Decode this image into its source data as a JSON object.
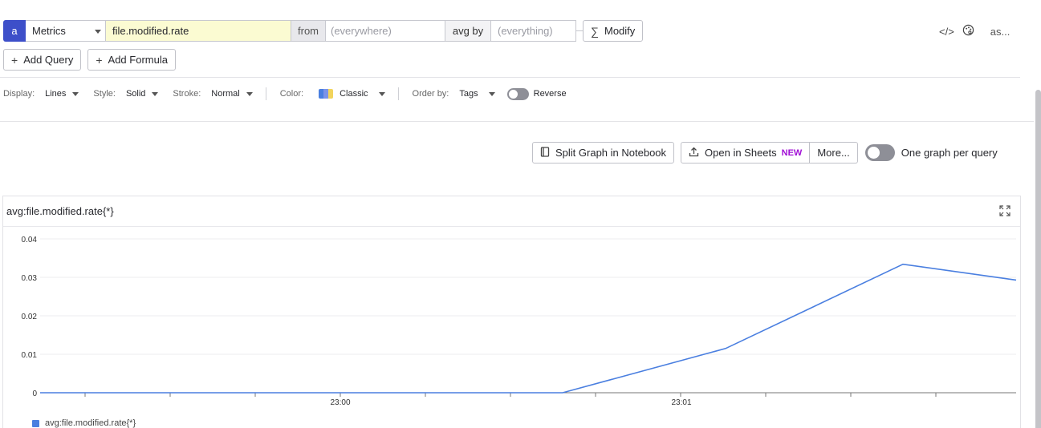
{
  "query": {
    "letter": "a",
    "source": "Metrics",
    "metric": "file.modified.rate",
    "from_label": "from",
    "from_placeholder": "(everywhere)",
    "avg_label": "avg by",
    "avg_placeholder": "(everything)",
    "modify_label": "Modify"
  },
  "top_right": {
    "truncated_label": "as..."
  },
  "actions": {
    "add_query": "Add Query",
    "add_formula": "Add Formula"
  },
  "display_options": {
    "display_label": "Display:",
    "display_value": "Lines",
    "style_label": "Style:",
    "style_value": "Solid",
    "stroke_label": "Stroke:",
    "stroke_value": "Normal",
    "color_label": "Color:",
    "color_value": "Classic",
    "order_label": "Order by:",
    "order_value": "Tags",
    "reverse_label": "Reverse",
    "palette": [
      "#4a7fe0",
      "#7b93e8",
      "#f2d45c"
    ]
  },
  "graph_actions": {
    "split_graph": "Split Graph in Notebook",
    "open_sheets": "Open in Sheets",
    "new_badge": "NEW",
    "more": "More...",
    "one_graph": "One graph per query"
  },
  "chart_data": {
    "type": "line",
    "title": "avg:file.modified.rate{*}",
    "x": [
      "22:59:44",
      "22:59:59",
      "23:00:14",
      "23:00:29",
      "23:00:44",
      "23:00:59",
      "23:01:14",
      "23:01:29",
      "23:01:39"
    ],
    "series": [
      {
        "name": "avg:file.modified.rate{*}",
        "color": "#4a7fe0",
        "values": [
          0,
          0,
          0,
          0,
          0,
          0,
          0.0115,
          0.0334,
          0.0293
        ]
      }
    ],
    "y_ticks": [
      "0.04",
      "0.03",
      "0.02",
      "0.01",
      "0"
    ],
    "x_tick_labels": [
      "23:00",
      "23:01"
    ],
    "ylim": [
      0,
      0.04
    ],
    "grid": true,
    "legend": "bottom-left"
  }
}
